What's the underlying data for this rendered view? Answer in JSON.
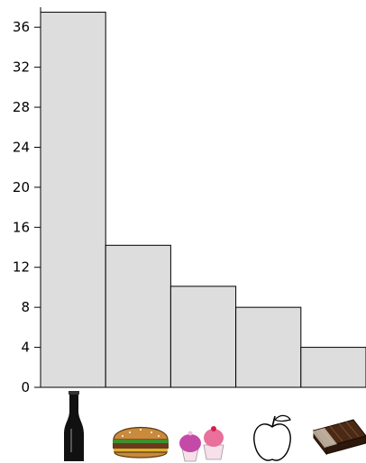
{
  "chart_data": {
    "type": "bar",
    "categories": [
      "soda",
      "hamburger",
      "cupcakes",
      "apple",
      "chocolate bar"
    ],
    "category_icons": [
      "soda-bottle-icon",
      "hamburger-icon",
      "cupcakes-icon",
      "apple-icon",
      "chocolate-bar-icon"
    ],
    "values": [
      37.5,
      14.2,
      10.1,
      8.0,
      4.0
    ],
    "yticks": [
      "0",
      "4",
      "8",
      "12",
      "16",
      "20",
      "24",
      "28",
      "32",
      "36"
    ],
    "ylim": [
      0,
      38
    ],
    "grid": false,
    "colors": {
      "bar_fill": "#dddddd",
      "bar_stroke": "#000000"
    }
  }
}
